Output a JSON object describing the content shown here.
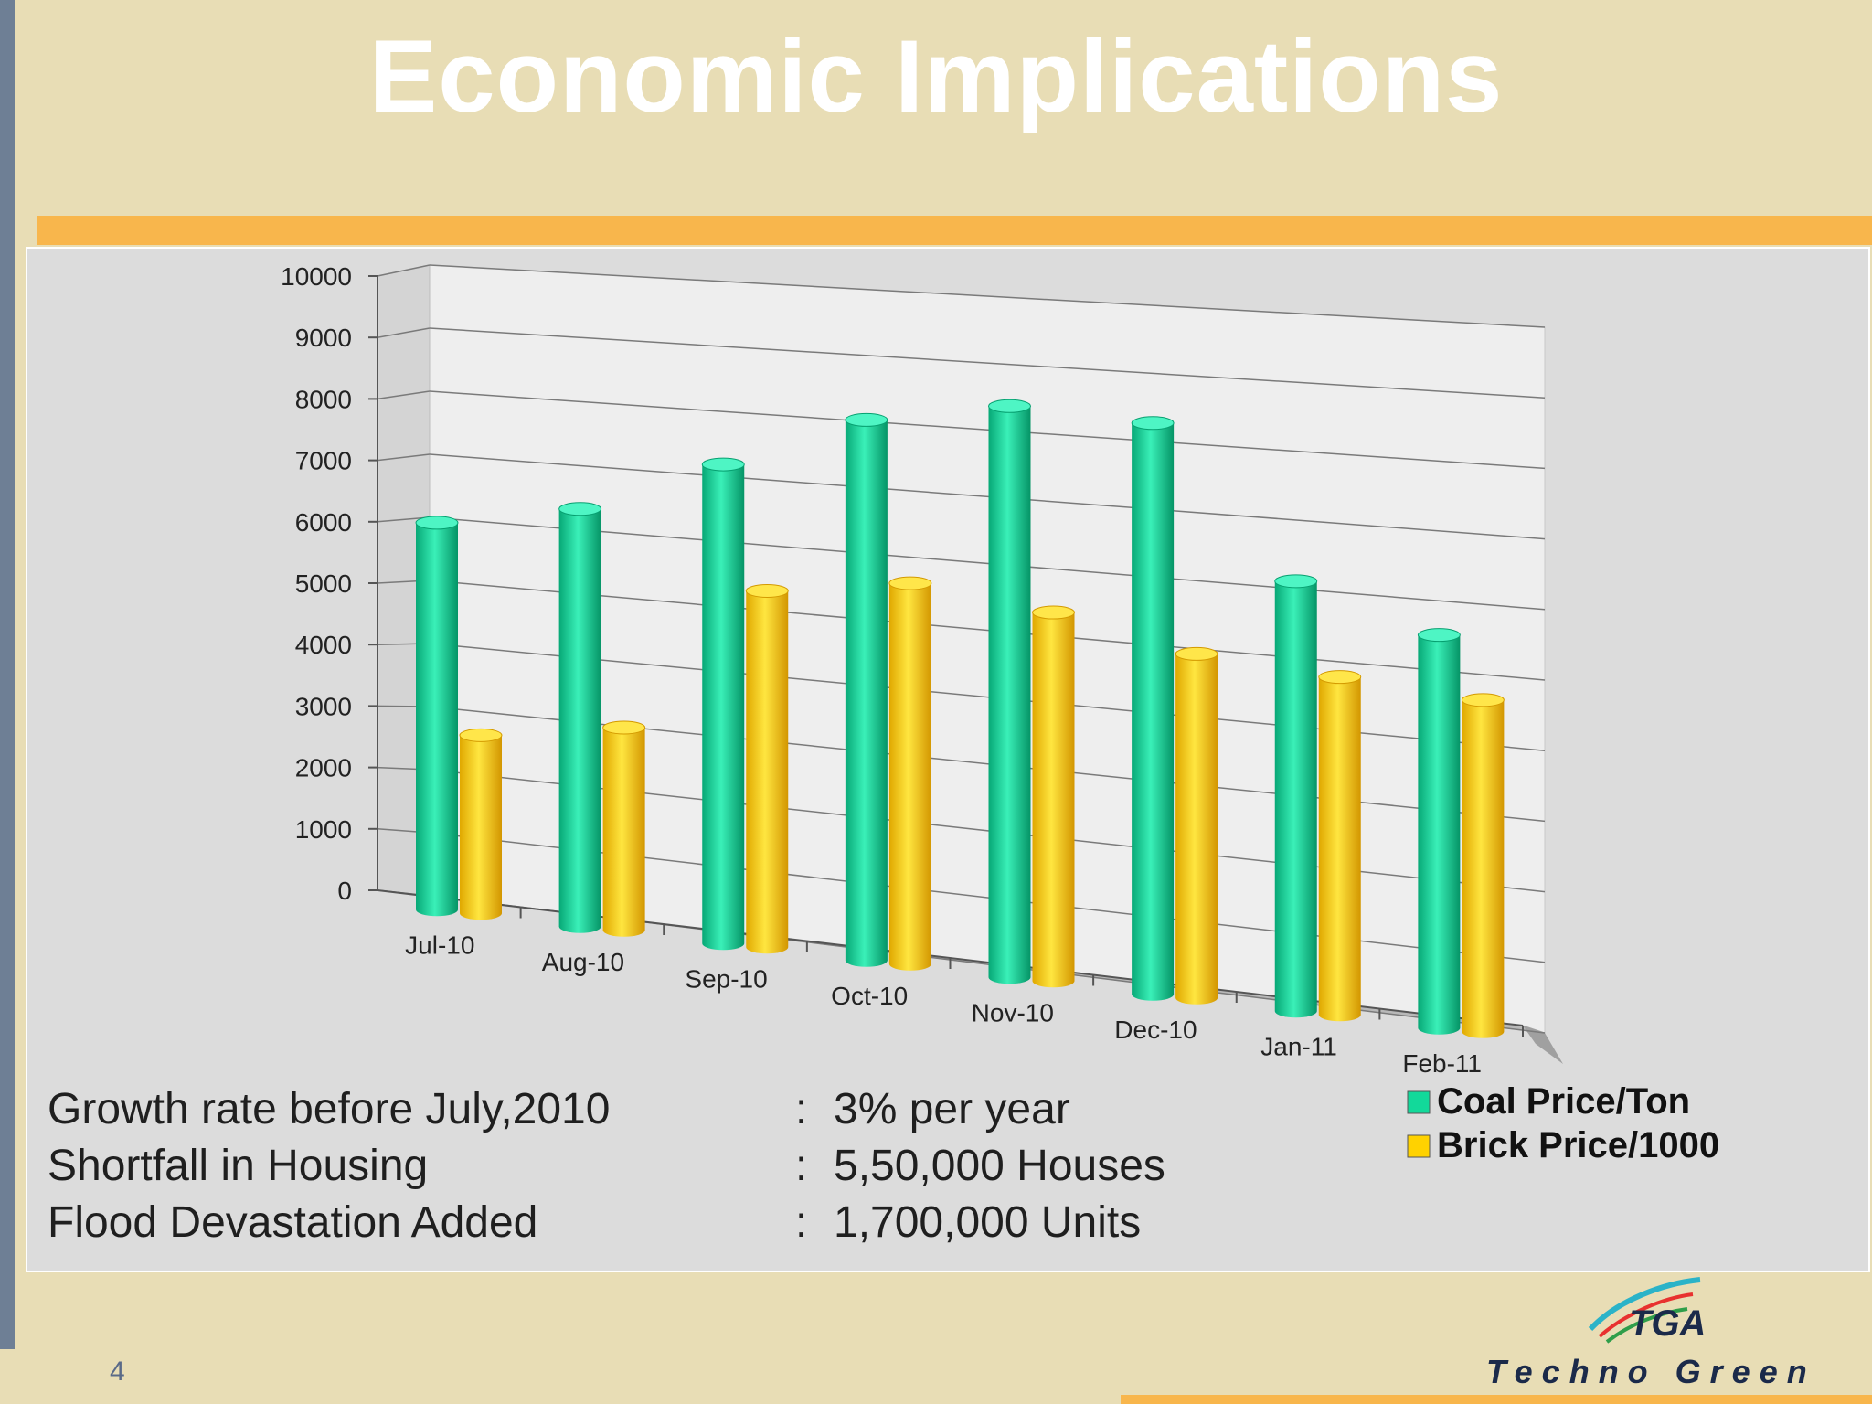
{
  "slide": {
    "title": "Economic Implications",
    "page_number": "4"
  },
  "stats": [
    {
      "label": "Growth rate before July,2010",
      "sep": ":",
      "value": "3% per year"
    },
    {
      "label": "Shortfall in Housing",
      "sep": ":",
      "value": "5,50,000 Houses"
    },
    {
      "label": "Flood Devastation Added",
      "sep": ":",
      "value": "1,700,000 Units"
    }
  ],
  "logo": {
    "mark": "TGA",
    "name": "Techno Green"
  },
  "chart_data": {
    "type": "bar",
    "categories": [
      "Jul-10",
      "Aug-10",
      "Sep-10",
      "Oct-10",
      "Nov-10",
      "Dec-10",
      "Jan-11",
      "Feb-11"
    ],
    "series": [
      {
        "name": "Coal Price/Ton",
        "color": "#12d99a",
        "values": [
          6300,
          6800,
          7800,
          8800,
          9300,
          9300,
          7000,
          6400
        ]
      },
      {
        "name": "Brick Price/1000",
        "color": "#ffd200",
        "values": [
          2900,
          3300,
          5800,
          6200,
          6000,
          5600,
          5500,
          5400
        ]
      }
    ],
    "ylim": [
      0,
      10000
    ],
    "yticks": [
      0,
      1000,
      2000,
      3000,
      4000,
      5000,
      6000,
      7000,
      8000,
      9000,
      10000
    ],
    "grid": true,
    "legend_position": "bottom-right",
    "style": "3d-cylinder"
  }
}
